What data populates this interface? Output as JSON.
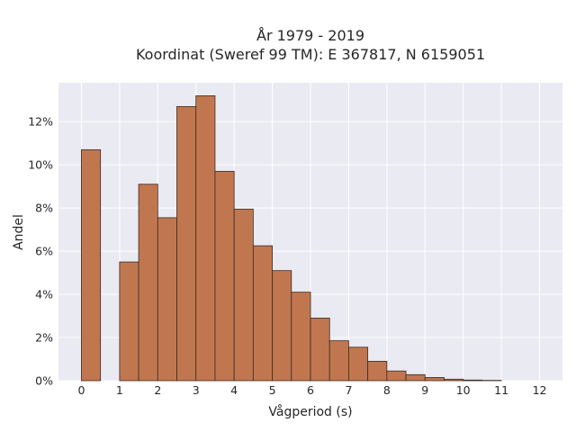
{
  "chart_data": {
    "type": "bar",
    "title_lines": [
      "År 1979 - 2019",
      "Koordinat (Sweref 99 TM): E 367817, N 6159051"
    ],
    "xlabel": "Vågperiod (s)",
    "ylabel": "Andel",
    "xlim": [
      -0.6,
      12.6
    ],
    "ylim": [
      0,
      13.8
    ],
    "x_ticks": [
      {
        "value": 0,
        "label": "0"
      },
      {
        "value": 1,
        "label": "1"
      },
      {
        "value": 2,
        "label": "2"
      },
      {
        "value": 3,
        "label": "3"
      },
      {
        "value": 4,
        "label": "4"
      },
      {
        "value": 5,
        "label": "5"
      },
      {
        "value": 6,
        "label": "6"
      },
      {
        "value": 7,
        "label": "7"
      },
      {
        "value": 8,
        "label": "8"
      },
      {
        "value": 9,
        "label": "9"
      },
      {
        "value": 10,
        "label": "10"
      },
      {
        "value": 11,
        "label": "11"
      },
      {
        "value": 12,
        "label": "12"
      }
    ],
    "y_ticks": [
      {
        "value": 0,
        "label": "0%"
      },
      {
        "value": 2,
        "label": "2%"
      },
      {
        "value": 4,
        "label": "4%"
      },
      {
        "value": 6,
        "label": "6%"
      },
      {
        "value": 8,
        "label": "8%"
      },
      {
        "value": 10,
        "label": "10%"
      },
      {
        "value": 12,
        "label": "12%"
      }
    ],
    "bin_width": 0.5,
    "bins": [
      {
        "start": 0.0,
        "value": 10.7
      },
      {
        "start": 1.0,
        "value": 5.5
      },
      {
        "start": 1.5,
        "value": 9.1
      },
      {
        "start": 2.0,
        "value": 7.55
      },
      {
        "start": 2.5,
        "value": 12.7
      },
      {
        "start": 3.0,
        "value": 13.2
      },
      {
        "start": 3.5,
        "value": 9.7
      },
      {
        "start": 4.0,
        "value": 7.95
      },
      {
        "start": 4.5,
        "value": 6.25
      },
      {
        "start": 5.0,
        "value": 5.1
      },
      {
        "start": 5.5,
        "value": 4.1
      },
      {
        "start": 6.0,
        "value": 2.9
      },
      {
        "start": 6.5,
        "value": 1.85
      },
      {
        "start": 7.0,
        "value": 1.55
      },
      {
        "start": 7.5,
        "value": 0.9
      },
      {
        "start": 8.0,
        "value": 0.45
      },
      {
        "start": 8.5,
        "value": 0.28
      },
      {
        "start": 9.0,
        "value": 0.15
      },
      {
        "start": 9.5,
        "value": 0.07
      },
      {
        "start": 10.0,
        "value": 0.03
      },
      {
        "start": 10.5,
        "value": 0.015
      }
    ],
    "grid": true,
    "colors": {
      "bar_fill": "#c07750",
      "bar_edge": "#3d2a20",
      "plot_background": "#eaeaf2",
      "grid": "#ffffff"
    }
  }
}
